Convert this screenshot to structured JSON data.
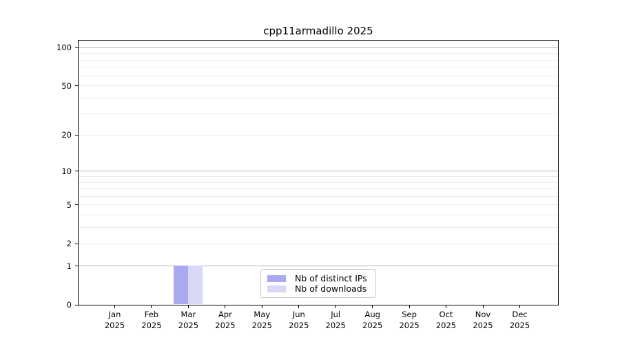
{
  "title": "cpp11armadillo 2025",
  "chart_data": {
    "type": "bar",
    "title": "cpp11armadillo 2025",
    "categories": [
      "Jan",
      "Feb",
      "Mar",
      "Apr",
      "May",
      "Jun",
      "Jul",
      "Aug",
      "Sep",
      "Oct",
      "Nov",
      "Dec"
    ],
    "year": "2025",
    "series": [
      {
        "name": "Nb of distinct IPs",
        "color": "#a9a9f2",
        "values": [
          0,
          0,
          1,
          0,
          0,
          0,
          0,
          0,
          0,
          0,
          0,
          0
        ]
      },
      {
        "name": "Nb of downloads",
        "color": "#d9d9f7",
        "values": [
          0,
          0,
          1,
          0,
          0,
          0,
          0,
          0,
          0,
          0,
          0,
          0
        ]
      }
    ],
    "xlabel": "",
    "ylabel": "",
    "ylim": [
      0,
      113
    ],
    "y_axis": {
      "scale": "log10(1+x)",
      "tick_values": [
        100,
        50,
        20,
        10,
        5,
        2,
        1,
        0
      ],
      "minor_grid_values": [
        2,
        3,
        4,
        5,
        6,
        7,
        8,
        9,
        20,
        30,
        40,
        50,
        60,
        70,
        80,
        90
      ],
      "major_grid_values": [
        1,
        10,
        100
      ]
    },
    "grid": "horizontal-only",
    "legend_position": "bottom-center",
    "colors": {
      "axis": "#000000",
      "minor_grid": "#eaeaea",
      "major_grid": "#b4b4b4",
      "background": "#ffffff",
      "legend_border": "#cccccc"
    }
  }
}
